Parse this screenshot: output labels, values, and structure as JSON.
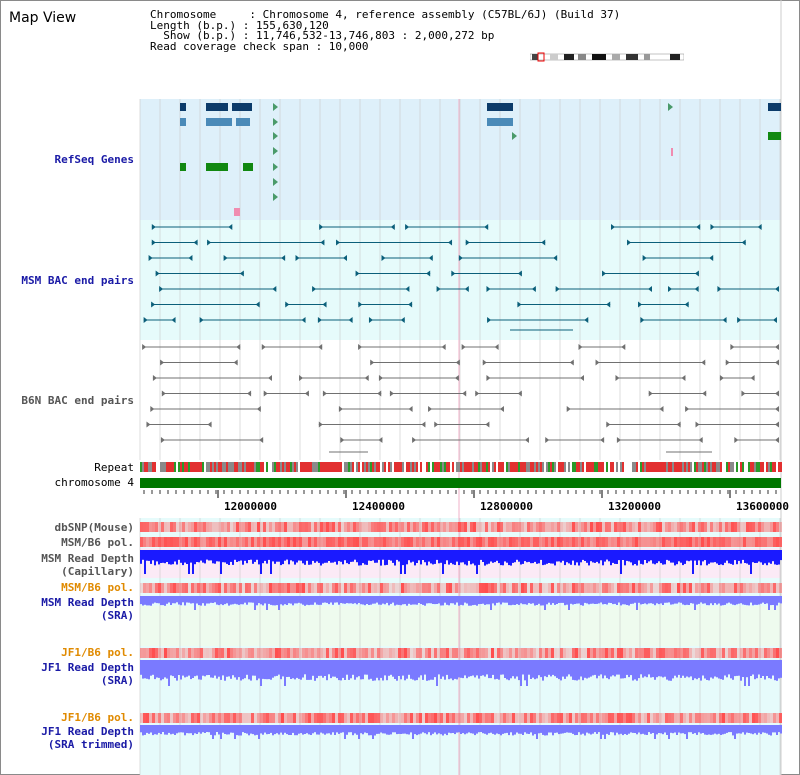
{
  "title": "Map View",
  "info": {
    "line1": "Chromosome     : Chromosome 4, reference assembly (C57BL/6J) (Build 37)",
    "line2": "Length (b.p.) : 155,630,120",
    "line3": "Show (b.p.) : 11,746,532-13,746,803 : 2,000,272 bp",
    "line4": "Read coverage check span : 10,000"
  },
  "tracks": {
    "refseq": "RefSeq Genes",
    "msm_bac": "MSM BAC end pairs",
    "b6n_bac": "B6N BAC end pairs",
    "repeat": "Repeat",
    "chromosome": "chromosome 4",
    "dbsnp": "dbSNP(Mouse)",
    "msm_b6_pol_1": "MSM/B6 pol.",
    "msm_read_depth_cap_1": "MSM Read Depth",
    "msm_read_depth_cap_2": "(Capillary)",
    "msm_b6_pol_2": "MSM/B6 pol.",
    "msm_read_depth_sra_1": "MSM Read Depth",
    "msm_read_depth_sra_2": "(SRA)",
    "jf1_b6_pol_1": "JF1/B6 pol.",
    "jf1_read_depth_1": "JF1 Read Depth",
    "jf1_read_depth_2": "(SRA)",
    "jf1_b6_pol_2": "JF1/B6 pol.",
    "jf1_trim_1": "JF1 Read Depth",
    "jf1_trim_2": "(SRA trimmed)"
  },
  "axis": {
    "ticks": [
      "12000000",
      "12400000",
      "12800000",
      "13200000",
      "13600000"
    ]
  },
  "colors": {
    "refseq_bg": "#def0fa",
    "bac_bg": "#e6fbfb",
    "grid": "#c8c8c8",
    "chromosome": "#007700",
    "depth_blue": "#1a1aff",
    "depth_light": "#7a7aff",
    "pol_red": "#ff4d4d",
    "msm_bac": "#0b5f7a",
    "b6n_bac": "#707070",
    "gene_navy": "#0b3b6a",
    "gene_blue": "#4a8ab8",
    "gene_green": "#118811"
  }
}
